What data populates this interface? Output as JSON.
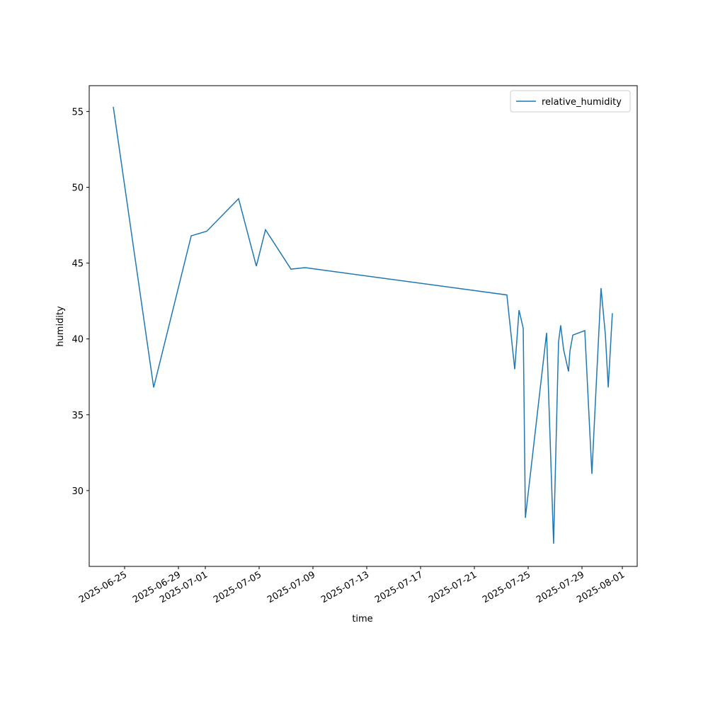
{
  "chart_data": {
    "type": "line",
    "xlabel": "time",
    "ylabel": "humidity",
    "x": [
      "2025-06-24 03:50",
      "2025-06-27 03:50",
      "2025-06-29 22:50",
      "2025-07-01 02:30",
      "2025-07-03 11:20",
      "2025-07-04 19:00",
      "2025-07-05 11:20",
      "2025-07-07 08:50",
      "2025-07-08 10:00",
      "2025-07-23 10:00",
      "2025-07-24 00:00",
      "2025-07-24 07:40",
      "2025-07-24 15:10",
      "2025-07-24 19:00",
      "2025-07-26 08:50",
      "2025-07-26 21:20",
      "2025-07-27 06:10",
      "2025-07-27 10:00",
      "2025-07-27 15:10",
      "2025-07-28 00:00",
      "2025-07-28 02:30",
      "2025-07-28 07:40",
      "2025-07-29 05:00",
      "2025-07-29 17:40",
      "2025-07-30 01:10",
      "2025-07-30 10:00",
      "2025-07-30 17:40",
      "2025-07-30 22:50",
      "2025-07-31 06:10"
    ],
    "series": [
      {
        "name": "relative_humidity",
        "color": "#1f77b4",
        "values": [
          55.3,
          36.8,
          46.8,
          47.1,
          49.25,
          44.8,
          47.2,
          44.6,
          44.7,
          42.9,
          38.0,
          41.9,
          40.7,
          28.2,
          40.4,
          26.5,
          39.8,
          40.9,
          39.3,
          37.85,
          39.2,
          40.25,
          40.55,
          31.1,
          36.8,
          43.35,
          40.3,
          36.8,
          41.7
        ]
      }
    ],
    "xlim": [
      "2025-06-22 08:50",
      "2025-08-02 02:30"
    ],
    "xticks": [
      "2025-06-25",
      "2025-06-29",
      "2025-07-01",
      "2025-07-05",
      "2025-07-09",
      "2025-07-13",
      "2025-07-17",
      "2025-07-21",
      "2025-07-25",
      "2025-07-29",
      "2025-08-01"
    ],
    "ylim": [
      25.0,
      56.7
    ],
    "yticks": [
      30,
      35,
      40,
      45,
      50,
      55
    ],
    "legend": "upper right",
    "grid": false
  }
}
